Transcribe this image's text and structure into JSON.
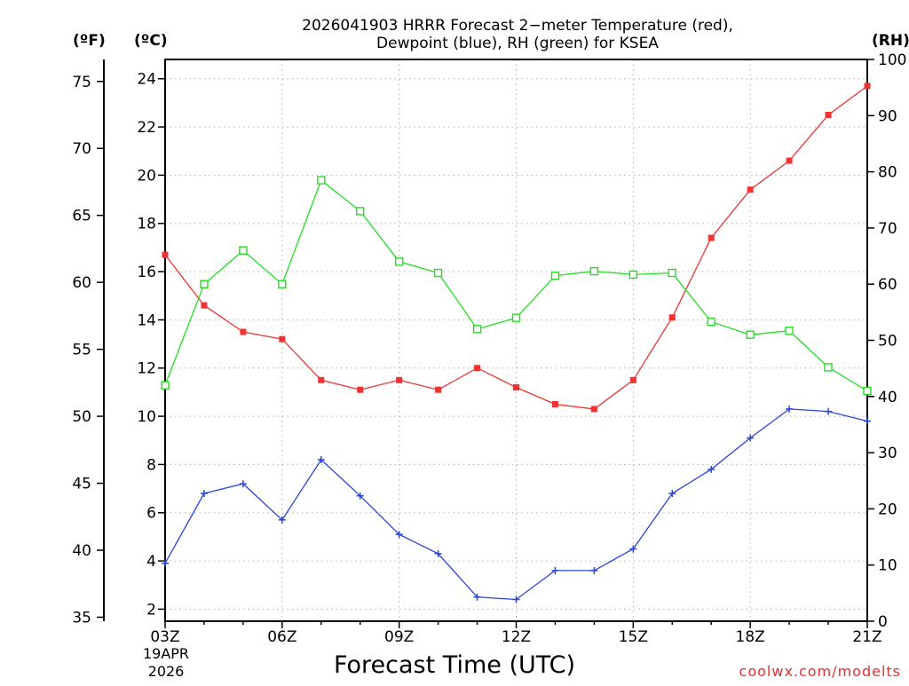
{
  "chart_data": {
    "type": "line",
    "title_lines": [
      "2026041903 HRRR Forecast 2−meter Temperature (red),",
      "Dewpoint (blue), RH (green) for KSEA"
    ],
    "units": {
      "fahrenheit": "(ºF)",
      "celsius": "(ºC)",
      "rh": "(RH)"
    },
    "categories": [
      "03Z",
      "04Z",
      "05Z",
      "06Z",
      "07Z",
      "08Z",
      "09Z",
      "10Z",
      "11Z",
      "12Z",
      "13Z",
      "14Z",
      "15Z",
      "16Z",
      "17Z",
      "18Z",
      "19Z",
      "20Z",
      "21Z"
    ],
    "x_tick_labels": [
      "03Z",
      "06Z",
      "09Z",
      "12Z",
      "15Z",
      "18Z",
      "21Z"
    ],
    "start_date_lines": [
      "19APR",
      "2026"
    ],
    "xlabel": "Forecast Time (UTC)",
    "credit": "coolwx.com/modelts",
    "ylim_celsius": [
      1.5,
      24.8
    ],
    "celsius_ticks": [
      2,
      4,
      6,
      8,
      10,
      12,
      14,
      16,
      18,
      20,
      22,
      24
    ],
    "fahrenheit_ticks": [
      35,
      40,
      45,
      50,
      55,
      60,
      65,
      70,
      75
    ],
    "rh_ticks": [
      0,
      10,
      20,
      30,
      40,
      50,
      60,
      70,
      80,
      90,
      100
    ],
    "colors": {
      "temperature": "#ee3333",
      "dewpoint": "#2a44dd",
      "rh": "#22dd22",
      "grid": "#b0b0b0",
      "credit": "#e03030"
    },
    "series": [
      {
        "name": "Temperature",
        "units": "celsius",
        "marker": "filled-square",
        "values": [
          16.7,
          14.6,
          13.5,
          13.2,
          11.5,
          11.1,
          11.5,
          11.1,
          12.0,
          11.2,
          10.5,
          10.3,
          11.5,
          14.1,
          17.4,
          19.4,
          20.6,
          22.5,
          23.7
        ]
      },
      {
        "name": "Dewpoint",
        "units": "celsius",
        "marker": "plus",
        "values": [
          3.9,
          6.8,
          7.2,
          5.7,
          8.2,
          6.7,
          5.1,
          4.3,
          2.5,
          2.4,
          3.6,
          3.6,
          4.5,
          6.8,
          7.8,
          9.1,
          10.3,
          10.2,
          9.8
        ]
      },
      {
        "name": "RH",
        "units": "percent",
        "marker": "open-square",
        "values": [
          42,
          60,
          66,
          60,
          78.5,
          73,
          64,
          62,
          52,
          54,
          61.5,
          62.3,
          61.7,
          62,
          53.3,
          51,
          51.7,
          45.2,
          41
        ]
      }
    ]
  }
}
